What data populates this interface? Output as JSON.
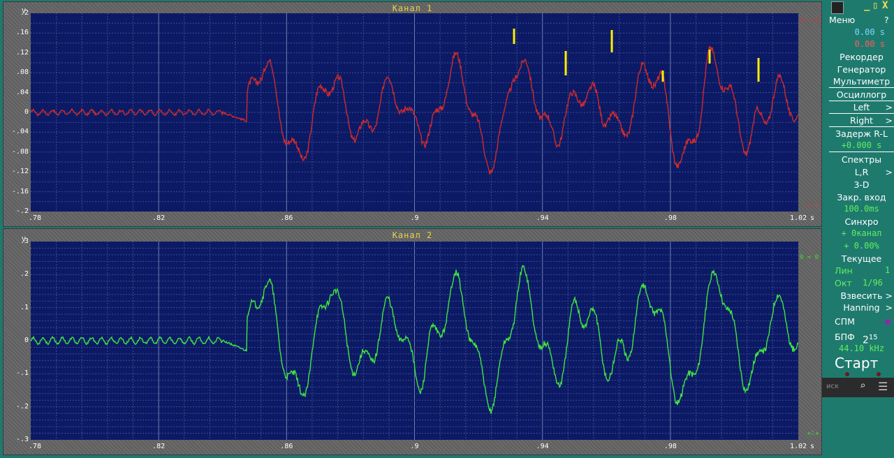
{
  "channel1": {
    "title": "Канал 1",
    "unit_y": "V",
    "unit_x": "s",
    "y_ticks": [
      ".2",
      ".16",
      ".12",
      ".08",
      ".04",
      "0",
      "-.04",
      "-.08",
      "-.12",
      "-.16",
      "-.2"
    ],
    "x_ticks": [
      ".78",
      ".82",
      ".86",
      ".9",
      ".94",
      ".98",
      "1.02"
    ],
    "right_top_label": "0 = 0",
    "color": "#d02a2a",
    "ylim": [
      -0.2,
      0.2
    ]
  },
  "channel2": {
    "title": "Канал 2",
    "unit_y": "V",
    "unit_x": "s",
    "y_ticks": [
      ".3",
      ".2",
      ".1",
      "0",
      "-.1",
      "-.2",
      "-.3"
    ],
    "x_ticks": [
      ".78",
      ".82",
      ".86",
      ".9",
      ".94",
      ".98",
      "1.02"
    ],
    "right_top_label": "0 = 0",
    "color": "#3fe53f",
    "ylim": [
      -0.3,
      0.3
    ]
  },
  "sidebar": {
    "menu_label": "Меню",
    "help_label": "?",
    "time_cursor": "0.00 s",
    "time_cursor2": "0.00 s",
    "recorder": "Рекордер",
    "generator": "Генератор",
    "multimeter": "Мультиметр",
    "oscilloscope": "Осциллогр",
    "left": "Left",
    "right": "Right",
    "delay_label": "Задерж R-L",
    "delay_value": "+0.000 s",
    "spectra": "Спектры",
    "lr": "L,R",
    "three_d": "3-D",
    "closed_input": "Закр. вход",
    "closed_input_value": "100.0ms",
    "sync": "Синхро",
    "sync_channel": "+ 0канал",
    "sync_percent": "+ 0.00%",
    "current": "Текущее",
    "lin_label": "Лин",
    "lin_value": "1",
    "oct_label": "Окт",
    "oct_value": "1/96",
    "weigh": "Взвесить",
    "hanning": "Hanning",
    "spm": "СПМ",
    "fft_label": "БПФ",
    "fft_base": "2",
    "fft_exp": "15",
    "sample_rate": "44.10 kHz",
    "start": "Старт",
    "search_placeholder": "иск"
  }
}
